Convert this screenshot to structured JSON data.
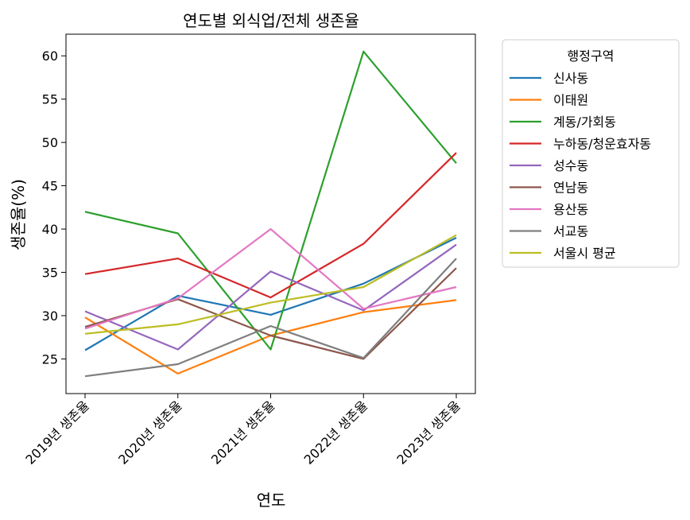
{
  "chart_data": {
    "type": "line",
    "title": "연도별 외식업/전체 생존율",
    "xlabel": "연도",
    "ylabel": "생존율(%)",
    "categories": [
      "2019년 생존율",
      "2020년 생존율",
      "2021년 생존율",
      "2022년 생존율",
      "2023년 생존율"
    ],
    "ylim": [
      21,
      62.5
    ],
    "yticks": [
      25,
      30,
      35,
      40,
      45,
      50,
      55,
      60
    ],
    "grid": false,
    "legend": {
      "title": "행정구역",
      "placement": "outside-right"
    },
    "series": [
      {
        "name": "신사동",
        "color": "#1f77b4",
        "values": [
          26.0,
          32.3,
          30.1,
          33.7,
          39.0
        ]
      },
      {
        "name": "이태원",
        "color": "#ff7f0e",
        "values": [
          29.8,
          23.3,
          27.7,
          30.4,
          31.8
        ]
      },
      {
        "name": "계동/가회동",
        "color": "#2ca02c",
        "values": [
          42.0,
          39.5,
          26.1,
          60.5,
          47.6
        ]
      },
      {
        "name": "누하동/청운효자동",
        "color": "#d62728",
        "values": [
          34.8,
          36.6,
          32.1,
          38.3,
          48.8
        ]
      },
      {
        "name": "성수동",
        "color": "#9467bd",
        "values": [
          30.5,
          26.1,
          35.1,
          30.6,
          38.2
        ]
      },
      {
        "name": "연남동",
        "color": "#8c564b",
        "values": [
          28.7,
          31.9,
          27.7,
          25.0,
          35.5
        ]
      },
      {
        "name": "용산동",
        "color": "#e377c2",
        "values": [
          28.5,
          32.0,
          40.0,
          30.8,
          33.3
        ]
      },
      {
        "name": "서교동",
        "color": "#7f7f7f",
        "values": [
          23.0,
          24.4,
          28.8,
          25.1,
          36.6
        ]
      },
      {
        "name": "서울시 평균",
        "color": "#bcbd22",
        "values": [
          27.9,
          29.0,
          31.5,
          33.3,
          39.3
        ]
      }
    ]
  }
}
